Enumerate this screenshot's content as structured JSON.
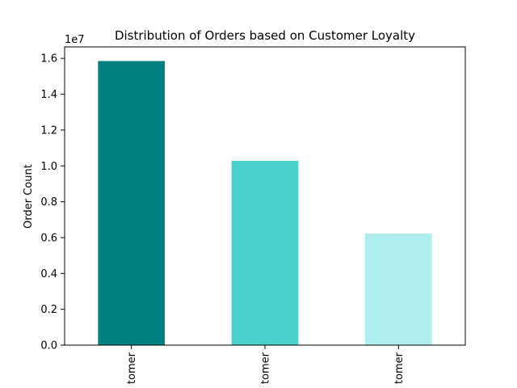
{
  "chart_data": {
    "type": "bar",
    "title": "Distribution of Orders based on Customer Loyalty",
    "xlabel": "",
    "ylabel": "Order Count",
    "offset_label": "1e7",
    "categories": [
      "tomer",
      "tomer",
      "tomer"
    ],
    "values": [
      15850000,
      10280000,
      6230000
    ],
    "colors": [
      "#008080",
      "#48d1cc",
      "#afeeee"
    ],
    "ylim": [
      0,
      16640000
    ],
    "yticks": [
      0,
      2000000,
      4000000,
      6000000,
      8000000,
      10000000,
      12000000,
      14000000,
      16000000
    ],
    "ytick_labels": [
      "0.0",
      "0.2",
      "0.4",
      "0.6",
      "0.8",
      "1.0",
      "1.2",
      "1.4",
      "1.6"
    ],
    "grid": false,
    "legend": "none"
  }
}
